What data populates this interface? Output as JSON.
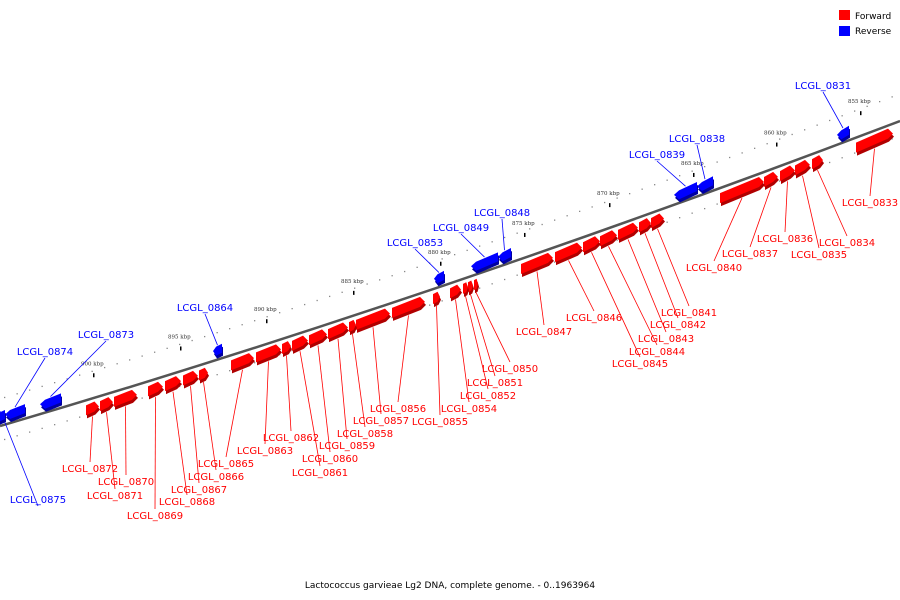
{
  "legend": {
    "forward": {
      "label": "Forward",
      "color": "#ff0000"
    },
    "reverse": {
      "label": "Reverse",
      "color": "#0000ff"
    }
  },
  "caption": "Lactococcus garvieae Lg2 DNA, complete genome. - 0..1963964",
  "scale_labels": [
    "855 kbp",
    "860 kbp",
    "865 kbp",
    "870 kbp",
    "875 kbp",
    "880 kbp",
    "885 kbp",
    "890 kbp",
    "895 kbp",
    "900 kbp"
  ],
  "genes": [
    {
      "name": "LCGL_0831",
      "strand": "reverse"
    },
    {
      "name": "LCGL_0833",
      "strand": "forward"
    },
    {
      "name": "LCGL_0834",
      "strand": "forward"
    },
    {
      "name": "LCGL_0835",
      "strand": "forward"
    },
    {
      "name": "LCGL_0836",
      "strand": "forward"
    },
    {
      "name": "LCGL_0837",
      "strand": "forward"
    },
    {
      "name": "LCGL_0838",
      "strand": "reverse"
    },
    {
      "name": "LCGL_0839",
      "strand": "reverse"
    },
    {
      "name": "LCGL_0840",
      "strand": "forward"
    },
    {
      "name": "LCGL_0841",
      "strand": "forward"
    },
    {
      "name": "LCGL_0842",
      "strand": "forward"
    },
    {
      "name": "LCGL_0843",
      "strand": "forward"
    },
    {
      "name": "LCGL_0844",
      "strand": "forward"
    },
    {
      "name": "LCGL_0845",
      "strand": "forward"
    },
    {
      "name": "LCGL_0846",
      "strand": "forward"
    },
    {
      "name": "LCGL_0847",
      "strand": "forward"
    },
    {
      "name": "LCGL_0848",
      "strand": "reverse"
    },
    {
      "name": "LCGL_0849",
      "strand": "reverse"
    },
    {
      "name": "LCGL_0850",
      "strand": "forward"
    },
    {
      "name": "LCGL_0851",
      "strand": "forward"
    },
    {
      "name": "LCGL_0852",
      "strand": "forward"
    },
    {
      "name": "LCGL_0853",
      "strand": "reverse"
    },
    {
      "name": "LCGL_0854",
      "strand": "forward"
    },
    {
      "name": "LCGL_0855",
      "strand": "forward"
    },
    {
      "name": "LCGL_0856",
      "strand": "forward"
    },
    {
      "name": "LCGL_0857",
      "strand": "forward"
    },
    {
      "name": "LCGL_0858",
      "strand": "forward"
    },
    {
      "name": "LCGL_0859",
      "strand": "forward"
    },
    {
      "name": "LCGL_0860",
      "strand": "forward"
    },
    {
      "name": "LCGL_0861",
      "strand": "forward"
    },
    {
      "name": "LCGL_0862",
      "strand": "forward"
    },
    {
      "name": "LCGL_0863",
      "strand": "forward"
    },
    {
      "name": "LCGL_0864",
      "strand": "reverse"
    },
    {
      "name": "LCGL_0865",
      "strand": "forward"
    },
    {
      "name": "LCGL_0866",
      "strand": "forward"
    },
    {
      "name": "LCGL_0867",
      "strand": "forward"
    },
    {
      "name": "LCGL_0868",
      "strand": "forward"
    },
    {
      "name": "LCGL_0869",
      "strand": "forward"
    },
    {
      "name": "LCGL_0870",
      "strand": "forward"
    },
    {
      "name": "LCGL_0871",
      "strand": "forward"
    },
    {
      "name": "LCGL_0872",
      "strand": "forward"
    },
    {
      "name": "LCGL_0873",
      "strand": "reverse"
    },
    {
      "name": "LCGL_0874",
      "strand": "reverse"
    },
    {
      "name": "LCGL_0875",
      "strand": "reverse"
    }
  ]
}
